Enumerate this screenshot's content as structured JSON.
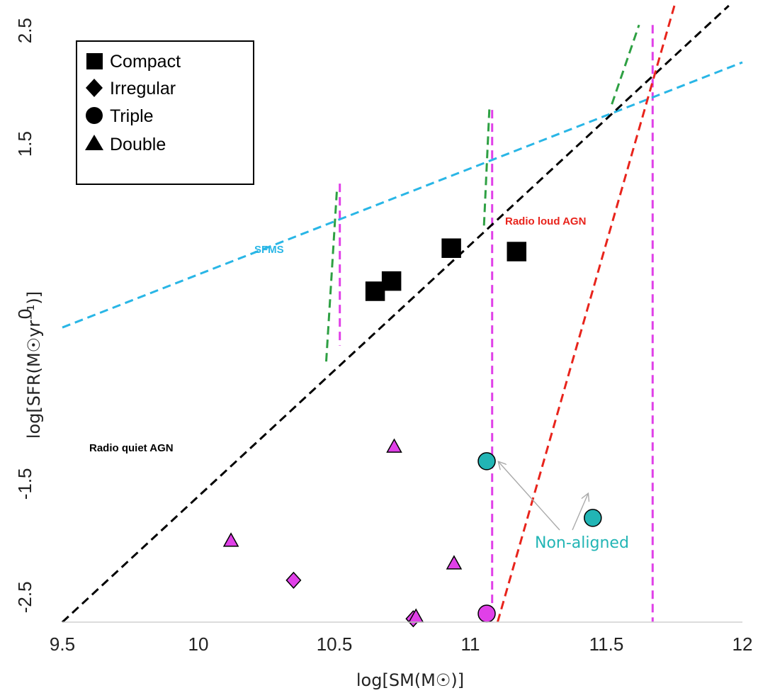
{
  "chart_data": {
    "type": "scatter",
    "xlabel": "log[SM(M☉)]",
    "ylabel": "log[SFR(M☉yr⁻¹)]",
    "xlim": [
      9.5,
      12
    ],
    "ylim": [
      -2.72,
      2.72
    ],
    "xticks": [
      "9.5",
      "10",
      "10.5",
      "11",
      "11.5",
      "12"
    ],
    "yticks": [
      "2.5",
      "1.5",
      "0",
      "-1.5",
      "-2.5"
    ],
    "ytick_values": [
      2.5,
      1.5,
      0,
      -1.5,
      -2.5
    ],
    "legend": {
      "placement": "top-left",
      "entries": [
        {
          "label": "Compact",
          "marker": "square"
        },
        {
          "label": "Irregular",
          "marker": "diamond"
        },
        {
          "label": "Triple",
          "marker": "circle"
        },
        {
          "label": "Double",
          "marker": "triangle"
        }
      ]
    },
    "lines": [
      {
        "label": "SFMS",
        "color": "#29b6e6",
        "points": [
          [
            9.5,
            -0.12
          ],
          [
            12,
            2.22
          ]
        ]
      },
      {
        "label": "Radio quiet AGN",
        "color": "#000000",
        "points": [
          [
            9.5,
            -2.72
          ],
          [
            11.95,
            2.72
          ]
        ]
      },
      {
        "label": "Radio loud AGN",
        "color": "#e8241c",
        "points": [
          [
            11.1,
            -2.72
          ],
          [
            11.75,
            2.72
          ]
        ]
      }
    ],
    "verticals": {
      "color": "#e040e8",
      "segments": [
        {
          "x": 10.52,
          "y0": -0.28,
          "y1": 1.15
        },
        {
          "x": 11.08,
          "y0": -2.72,
          "y1": 1.8
        },
        {
          "x": 11.67,
          "y0": -2.72,
          "y1": 2.55
        }
      ]
    },
    "green_segments": {
      "color": "#2ea043",
      "segments": [
        {
          "x0": 10.47,
          "y0": -0.42,
          "x1": 10.51,
          "y1": 1.12
        },
        {
          "x0": 11.05,
          "y0": 0.78,
          "x1": 11.07,
          "y1": 1.82
        },
        {
          "x0": 11.52,
          "y0": 1.85,
          "x1": 11.62,
          "y1": 2.55
        }
      ]
    },
    "series": [
      {
        "name": "Compact",
        "marker": "square",
        "color": "#000000",
        "points": [
          [
            10.65,
            0.2
          ],
          [
            10.71,
            0.29
          ],
          [
            10.93,
            0.58
          ],
          [
            11.17,
            0.55
          ]
        ]
      },
      {
        "name": "Irregular",
        "marker": "diamond",
        "color": "#e040e8",
        "points": [
          [
            10.35,
            -2.35
          ],
          [
            10.79,
            -2.69
          ]
        ]
      },
      {
        "name": "Triple",
        "marker": "circle",
        "colors": [
          "#22b5b5",
          "#22b5b5",
          "#e040e8"
        ],
        "points": [
          [
            11.06,
            -1.3
          ],
          [
            11.45,
            -1.8
          ],
          [
            11.06,
            -2.98
          ]
        ]
      },
      {
        "name": "Double",
        "marker": "triangle",
        "color": "#e040e8",
        "points": [
          [
            10.72,
            -1.17
          ],
          [
            10.12,
            -2.0
          ],
          [
            10.94,
            -2.2
          ],
          [
            10.8,
            -2.67
          ]
        ]
      }
    ],
    "annotations": [
      {
        "key": "sfms",
        "text": "SFMS",
        "color": "#29b6e6"
      },
      {
        "key": "radio_loud",
        "text": "Radio loud AGN",
        "color": "#e8241c"
      },
      {
        "key": "radio_quiet",
        "text": "Radio quiet AGN",
        "color": "#000000"
      },
      {
        "key": "non_aligned",
        "text": "Non-aligned",
        "color": "#22b5b5"
      }
    ]
  }
}
